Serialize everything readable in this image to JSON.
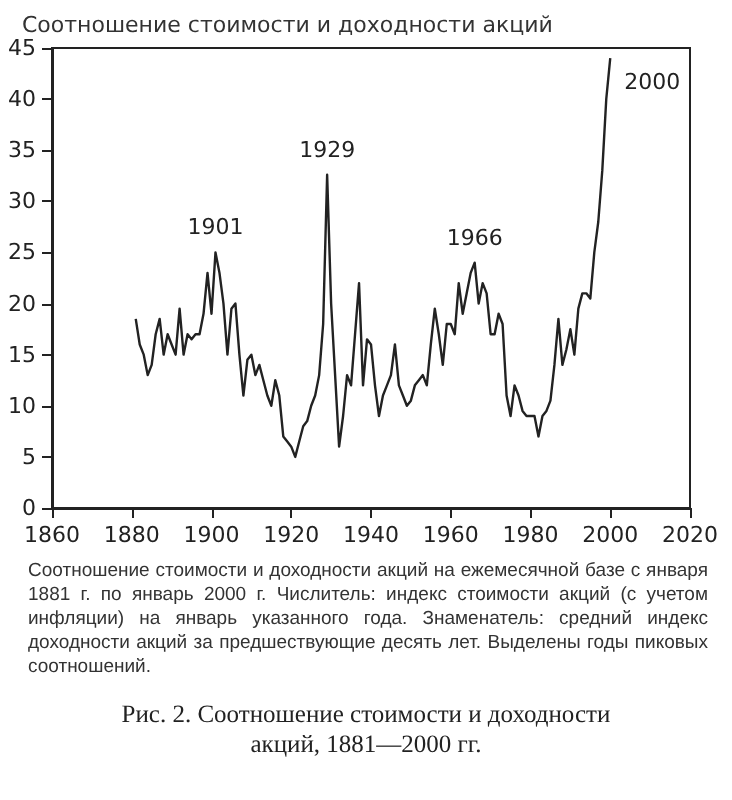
{
  "chart_data": {
    "type": "line",
    "title": "Соотношение стоимости и доходности акций",
    "x": [
      1881,
      1882,
      1883,
      1884,
      1885,
      1886,
      1887,
      1888,
      1889,
      1890,
      1891,
      1892,
      1893,
      1894,
      1895,
      1896,
      1897,
      1898,
      1899,
      1900,
      1901,
      1902,
      1903,
      1904,
      1905,
      1906,
      1907,
      1908,
      1909,
      1910,
      1911,
      1912,
      1913,
      1914,
      1915,
      1916,
      1917,
      1918,
      1919,
      1920,
      1921,
      1922,
      1923,
      1924,
      1925,
      1926,
      1927,
      1928,
      1929,
      1930,
      1931,
      1932,
      1933,
      1934,
      1935,
      1936,
      1937,
      1938,
      1939,
      1940,
      1941,
      1942,
      1943,
      1944,
      1945,
      1946,
      1947,
      1948,
      1949,
      1950,
      1951,
      1952,
      1953,
      1954,
      1955,
      1956,
      1957,
      1958,
      1959,
      1960,
      1961,
      1962,
      1963,
      1964,
      1965,
      1966,
      1967,
      1968,
      1969,
      1970,
      1971,
      1972,
      1973,
      1974,
      1975,
      1976,
      1977,
      1978,
      1979,
      1980,
      1981,
      1982,
      1983,
      1984,
      1985,
      1986,
      1987,
      1988,
      1989,
      1990,
      1991,
      1992,
      1993,
      1994,
      1995,
      1996,
      1997,
      1998,
      1999,
      2000
    ],
    "series": [
      {
        "color": "#222222",
        "values": [
          18.5,
          16,
          15,
          13,
          14,
          17,
          18.5,
          15,
          17,
          16,
          15,
          19.5,
          15,
          17,
          16.5,
          17,
          17,
          19,
          23,
          19,
          25,
          23,
          20,
          15,
          19.5,
          20,
          15,
          11,
          14.5,
          15,
          13,
          14,
          12.5,
          11,
          10,
          12.5,
          11,
          7,
          6.5,
          6,
          5,
          6.5,
          8,
          8.5,
          10,
          11,
          13,
          18,
          32.6,
          20,
          13,
          6,
          9,
          13,
          12,
          17,
          22,
          12,
          16.5,
          16,
          12,
          9,
          11,
          12,
          13,
          16,
          12,
          11,
          10,
          10.5,
          12,
          12.5,
          13,
          12,
          16,
          19.5,
          17,
          14,
          18,
          18,
          17,
          22,
          19,
          21,
          23,
          24,
          20,
          22,
          21,
          17,
          17,
          19,
          18,
          11,
          9,
          12,
          11,
          9.5,
          9,
          9,
          9,
          7,
          9,
          9.5,
          10.5,
          14,
          18.5,
          14,
          15.5,
          17.5,
          15,
          19.5,
          21,
          21,
          20.5,
          25,
          28,
          33,
          40,
          44
        ]
      }
    ],
    "xlim": [
      1860,
      2020
    ],
    "xticks": [
      1860,
      1880,
      1900,
      1920,
      1940,
      1960,
      1980,
      2000,
      2020
    ],
    "ylim": [
      0,
      45
    ],
    "yticks": [
      0,
      5,
      10,
      15,
      20,
      25,
      30,
      35,
      40,
      45
    ],
    "grid": false,
    "marker": "none",
    "line_style": "solid",
    "annotations": [
      {
        "text": "1901",
        "x": 1901,
        "y": 25
      },
      {
        "text": "1929",
        "x": 1929,
        "y": 32.6
      },
      {
        "text": "1966",
        "x": 1966,
        "y": 24
      },
      {
        "text": "2000",
        "x": 2000,
        "y": 44
      },
      "Соотношение стоимости и доходности акций на ежемесячной базе с января 1881 г. по январь 2000 г. Числитель: индекс стоимости акций (с учетом инфляции) на январь указанного года. Знаменатель: средний индекс доходности акций за предшествующие десять лет. Выделены годы пиковых соотношений.",
      "Рис. 2. Соотношение стоимости и доходности акций, 1881—2000 гг."
    ]
  }
}
